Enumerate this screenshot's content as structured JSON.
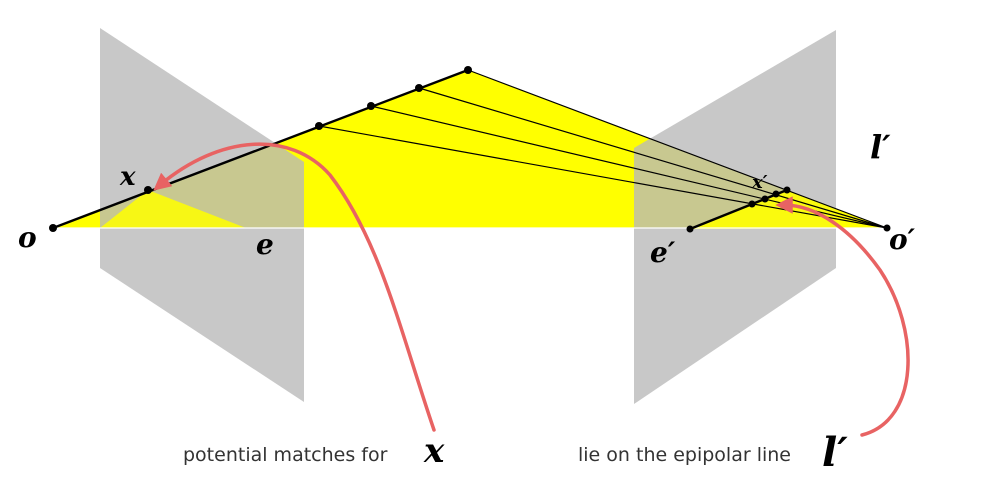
{
  "labels": {
    "o": "o",
    "x": "x",
    "e": "e",
    "e_prime": "e′",
    "o_prime": "o′",
    "l_prime": "l′",
    "x_prime": "x′"
  },
  "captions": {
    "left": "potential matches for",
    "left_symbol": "x",
    "right": "lie on the epipolar line",
    "right_symbol": "l′"
  },
  "colors": {
    "plane": "#c4c4c4",
    "triangle": "#ffff00",
    "arrow": "#e86363",
    "line": "#000000"
  }
}
